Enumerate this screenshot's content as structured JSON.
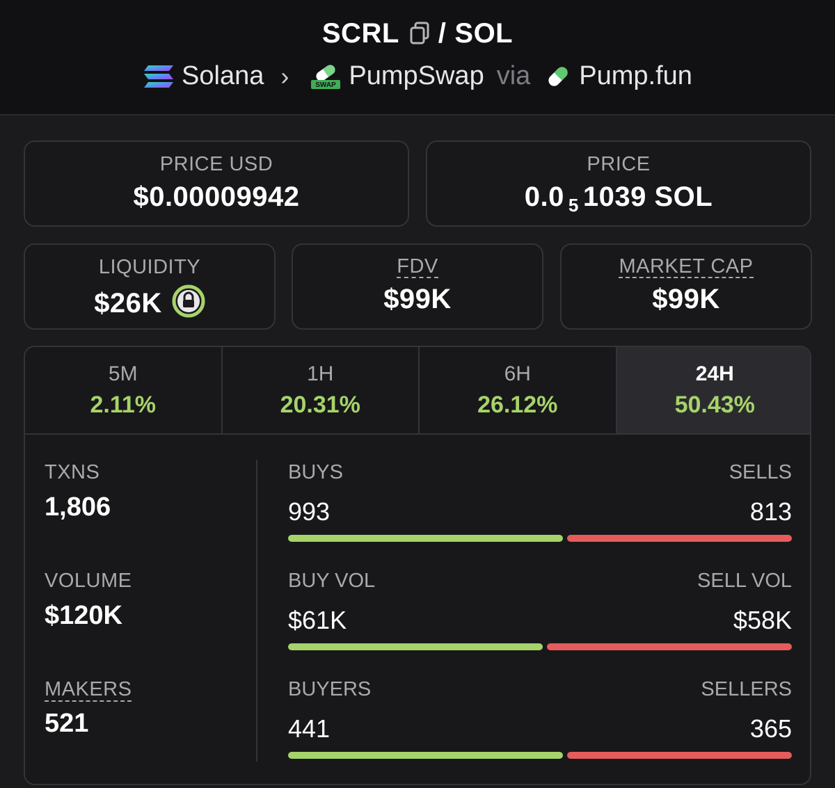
{
  "header": {
    "base_token": "SCRL",
    "separator": "/",
    "quote_token": "SOL",
    "chain": "Solana",
    "dex": "PumpSwap",
    "via": "via",
    "launchpad": "Pump.fun",
    "dex_icon_text": "SWAP"
  },
  "price_usd": {
    "label": "PRICE USD",
    "value": "$0.00009942"
  },
  "price": {
    "label": "PRICE",
    "prefix": "0.0",
    "zeros": "5",
    "suffix": "1039 SOL"
  },
  "liquidity": {
    "label": "LIQUIDITY",
    "value": "$26K"
  },
  "fdv": {
    "label": "FDV",
    "value": "$99K"
  },
  "market_cap": {
    "label": "MARKET CAP",
    "value": "$99K"
  },
  "tabs": [
    {
      "label": "5M",
      "value": "2.11%"
    },
    {
      "label": "1H",
      "value": "20.31%"
    },
    {
      "label": "6H",
      "value": "26.12%"
    },
    {
      "label": "24H",
      "value": "50.43%"
    }
  ],
  "active_tab": "24H",
  "metrics": {
    "txns": {
      "label": "TXNS",
      "value": "1,806"
    },
    "volume": {
      "label": "VOLUME",
      "value": "$120K"
    },
    "makers": {
      "label": "MAKERS",
      "value": "521"
    }
  },
  "breakdown": {
    "txns": {
      "left_label": "BUYS",
      "right_label": "SELLS",
      "left_value": "993",
      "right_value": "813",
      "buy_fraction": 0.55
    },
    "volume": {
      "left_label": "BUY VOL",
      "right_label": "SELL VOL",
      "left_value": "$61K",
      "right_value": "$58K",
      "buy_fraction": 0.51
    },
    "makers": {
      "left_label": "BUYERS",
      "right_label": "SELLERS",
      "left_value": "441",
      "right_value": "365",
      "buy_fraction": 0.55
    }
  },
  "colors": {
    "positive": "#a6d36a",
    "negative": "#e65c5c",
    "background": "#1b1b1d"
  }
}
